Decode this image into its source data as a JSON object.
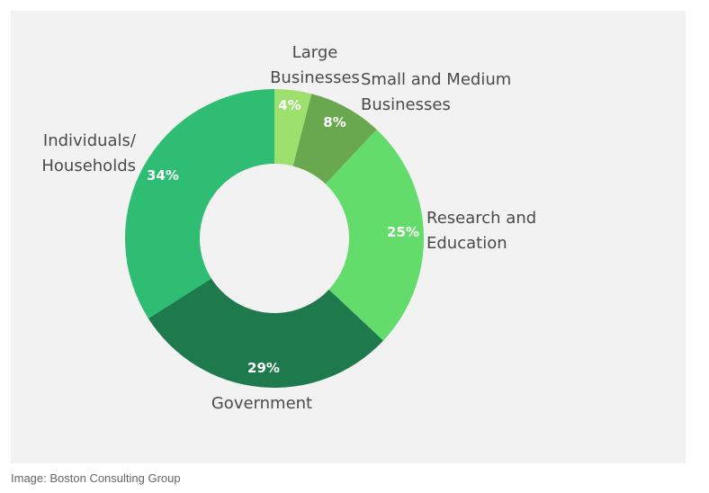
{
  "chart_data": {
    "type": "pie",
    "donut": true,
    "slices": [
      {
        "label_lines": [
          "Large",
          "Businesses"
        ],
        "value": 4,
        "value_label": "4%",
        "color": "#9ee06e"
      },
      {
        "label_lines": [
          "Small and Medium",
          "Businesses"
        ],
        "value": 8,
        "value_label": "8%",
        "color": "#6aa84f"
      },
      {
        "label_lines": [
          "Research and",
          "Education"
        ],
        "value": 25,
        "value_label": "25%",
        "color": "#63dc6c"
      },
      {
        "label_lines": [
          "Government"
        ],
        "value": 29,
        "value_label": "29%",
        "color": "#1e7a4c"
      },
      {
        "label_lines": [
          "Individuals/",
          "Households"
        ],
        "value": 34,
        "value_label": "34%",
        "color": "#2ebd72"
      }
    ]
  },
  "caption": "Image: Boston Consulting Group"
}
